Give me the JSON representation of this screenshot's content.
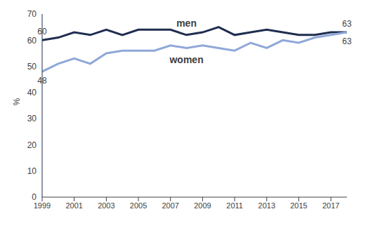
{
  "chart_data": {
    "type": "line",
    "y_label": "%",
    "x": [
      1999,
      2000,
      2001,
      2002,
      2003,
      2004,
      2005,
      2006,
      2007,
      2008,
      2009,
      2010,
      2011,
      2012,
      2013,
      2014,
      2015,
      2016,
      2017,
      2018
    ],
    "xlim": [
      1999,
      2018
    ],
    "xticks": [
      1999,
      2001,
      2003,
      2005,
      2007,
      2009,
      2011,
      2013,
      2015,
      2017
    ],
    "ylim": [
      0,
      70
    ],
    "yticks": [
      0,
      10,
      20,
      30,
      40,
      50,
      60,
      70
    ],
    "grid": false,
    "series": [
      {
        "name": "men",
        "color": "#1f2d4f",
        "values": [
          60,
          61,
          63,
          62,
          64,
          62,
          64,
          64,
          64,
          62,
          63,
          65,
          62,
          63,
          64,
          63,
          62,
          62,
          63,
          63
        ]
      },
      {
        "name": "women",
        "color": "#8fa8d8",
        "values": [
          48,
          51,
          53,
          51,
          55,
          56,
          56,
          56,
          58,
          57,
          58,
          57,
          56,
          59,
          57,
          60,
          59,
          61,
          62,
          63
        ]
      }
    ],
    "annotations": [
      {
        "text": "60",
        "x": 1999,
        "series": "men"
      },
      {
        "text": "48",
        "x": 1999,
        "series": "women"
      },
      {
        "text": "63",
        "x": 2018,
        "series": "men"
      },
      {
        "text": "63",
        "x": 2018,
        "series": "women"
      }
    ]
  }
}
